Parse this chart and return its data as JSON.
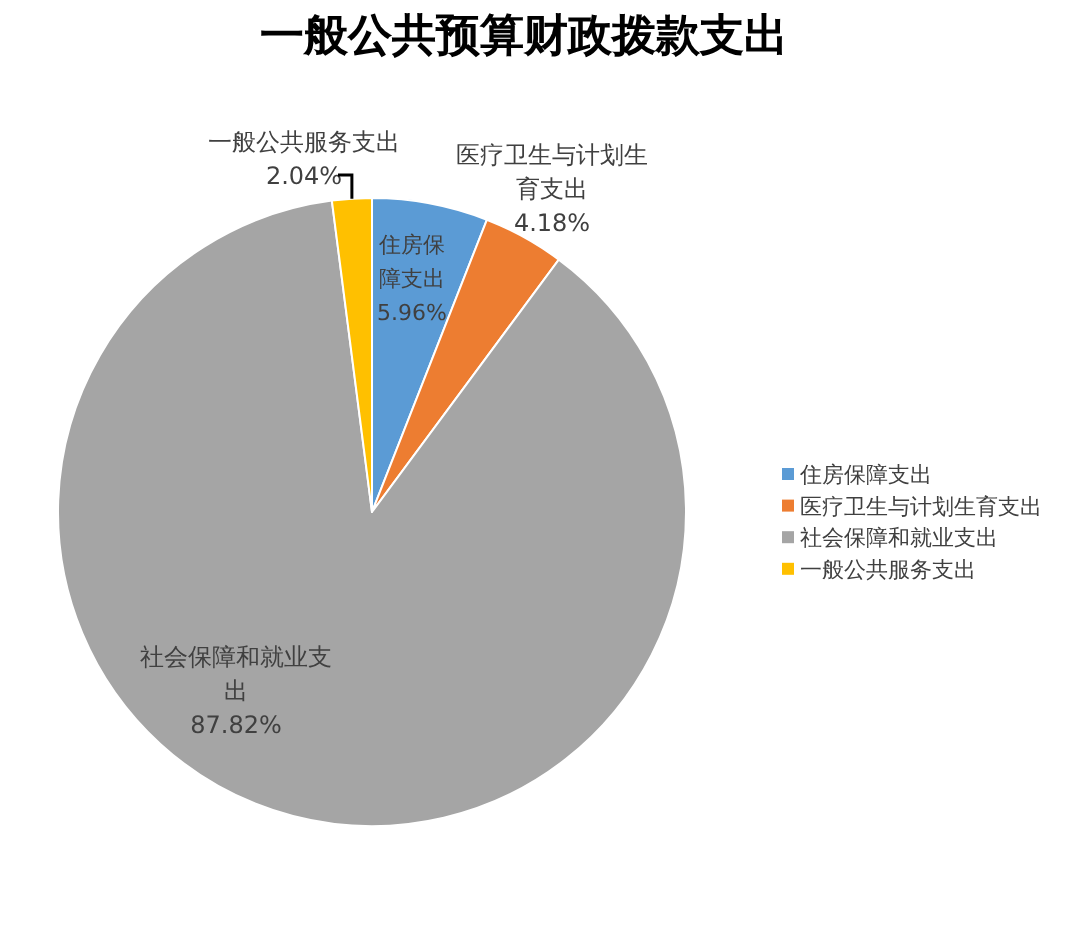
{
  "chart_data": {
    "type": "pie",
    "title": "一般公共预算财政拨款支出",
    "categories": [
      "住房保障支出",
      "医疗卫生与计划生育支出",
      "社会保障和就业支出",
      "一般公共服务支出"
    ],
    "values": [
      5.96,
      4.18,
      87.82,
      2.04
    ],
    "colors": [
      "#5b9bd5",
      "#ed7d31",
      "#a5a5a5",
      "#ffc000"
    ],
    "value_labels": [
      "5.96%",
      "4.18%",
      "87.82%",
      "2.04%"
    ],
    "legend": "right"
  }
}
